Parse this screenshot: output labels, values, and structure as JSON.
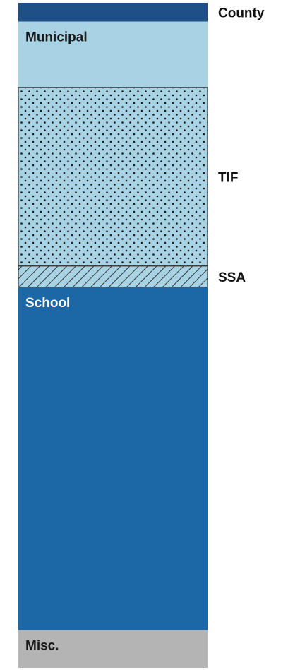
{
  "chart_data": {
    "type": "bar",
    "orientation": "vertical-stacked-single",
    "stacked": true,
    "grid": false,
    "legend": "none",
    "segments": [
      {
        "name": "County",
        "share": 0.8,
        "color": "#1f4f87",
        "pattern": "solid",
        "label_position": "right"
      },
      {
        "name": "Municipal",
        "share": 2.8,
        "color": "#a8d3e4",
        "pattern": "solid",
        "label_position": "inside",
        "label_color": "#1a1a1a"
      },
      {
        "name": "TIF",
        "share": 7.6,
        "color": "#a8d3e4",
        "pattern": "dots",
        "label_position": "right"
      },
      {
        "name": "SSA",
        "share": 0.9,
        "color": "#a8d3e4",
        "pattern": "hatch",
        "label_position": "right"
      },
      {
        "name": "School",
        "share": 14.6,
        "color": "#1c68a6",
        "pattern": "solid",
        "label_position": "inside",
        "label_color": "#ffffff"
      },
      {
        "name": "Misc.",
        "share": 1.6,
        "color": "#b4b4b4",
        "pattern": "solid",
        "label_position": "inside",
        "label_color": "#1a1a1a"
      }
    ]
  }
}
